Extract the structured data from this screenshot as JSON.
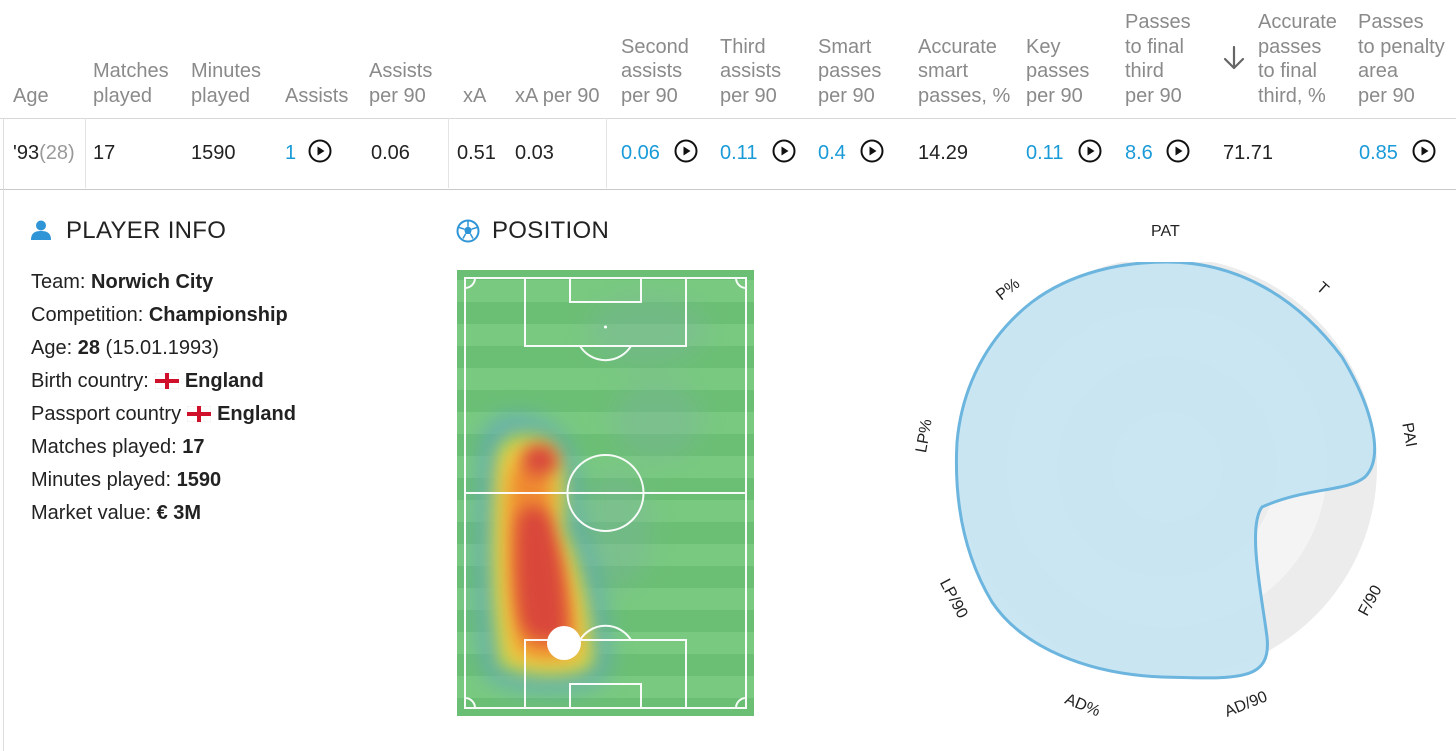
{
  "table": {
    "headers": {
      "age": [
        "Age"
      ],
      "matches_played": [
        "Matches",
        "played"
      ],
      "minutes_played": [
        "Minutes",
        "played"
      ],
      "assists": [
        "Assists"
      ],
      "assists_per90": [
        "Assists",
        "per 90"
      ],
      "xa": [
        "xA"
      ],
      "xa_per90": [
        "xA per 90"
      ],
      "second_assists": [
        "Second",
        "assists",
        "per 90"
      ],
      "third_assists": [
        "Third",
        "assists",
        "per 90"
      ],
      "smart_passes": [
        "Smart",
        "passes",
        "per 90"
      ],
      "accurate_smart": [
        "Accurate",
        "smart",
        "passes, %"
      ],
      "key_passes": [
        "Key",
        "passes",
        "per 90"
      ],
      "passes_final_third": [
        "Passes",
        "to final",
        "third",
        "per 90"
      ],
      "accurate_final_third": [
        "Accurate",
        "passes",
        "to final",
        "third, %"
      ],
      "passes_penalty": [
        "Passes",
        "to penalty",
        "area",
        "per 90"
      ]
    },
    "row": {
      "birth_year": "'93",
      "age": "(28)",
      "matches_played": "17",
      "minutes_played": "1590",
      "assists": "1",
      "assists_per90": "0.06",
      "xa": "0.51",
      "xa_per90": "0.03",
      "second_assists": "0.06",
      "third_assists": "0.11",
      "smart_passes": "0.4",
      "accurate_smart": "14.29",
      "key_passes": "0.11",
      "passes_final_third": "8.6",
      "accurate_final_third": "71.71",
      "passes_penalty": "0.85"
    },
    "accent_color": "#1a9bd8"
  },
  "player_info": {
    "title": "PLAYER INFO",
    "icon": "person-icon",
    "team_label": "Team:",
    "team": "Norwich City",
    "competition_label": "Competition:",
    "competition": "Championship",
    "age_label": "Age:",
    "age": "28",
    "birth_date": "(15.01.1993)",
    "birth_country_label": "Birth country:",
    "birth_country": "England",
    "passport_country_label": "Passport country",
    "passport_country": "England",
    "matches_label": "Matches played:",
    "matches": "17",
    "minutes_label": "Minutes played:",
    "minutes": "1590",
    "market_label": "Market value:",
    "market": "€ 3M"
  },
  "position": {
    "title": "POSITION",
    "icon": "soccer-ball-icon"
  },
  "radar": {
    "labels": [
      "PAT",
      "T",
      "PAI",
      "F/90",
      "AD/90",
      "AD%",
      "LP/90",
      "LP%",
      "P%"
    ],
    "fill_color": "#c6e4f2",
    "stroke_color": "#6bb5de"
  }
}
